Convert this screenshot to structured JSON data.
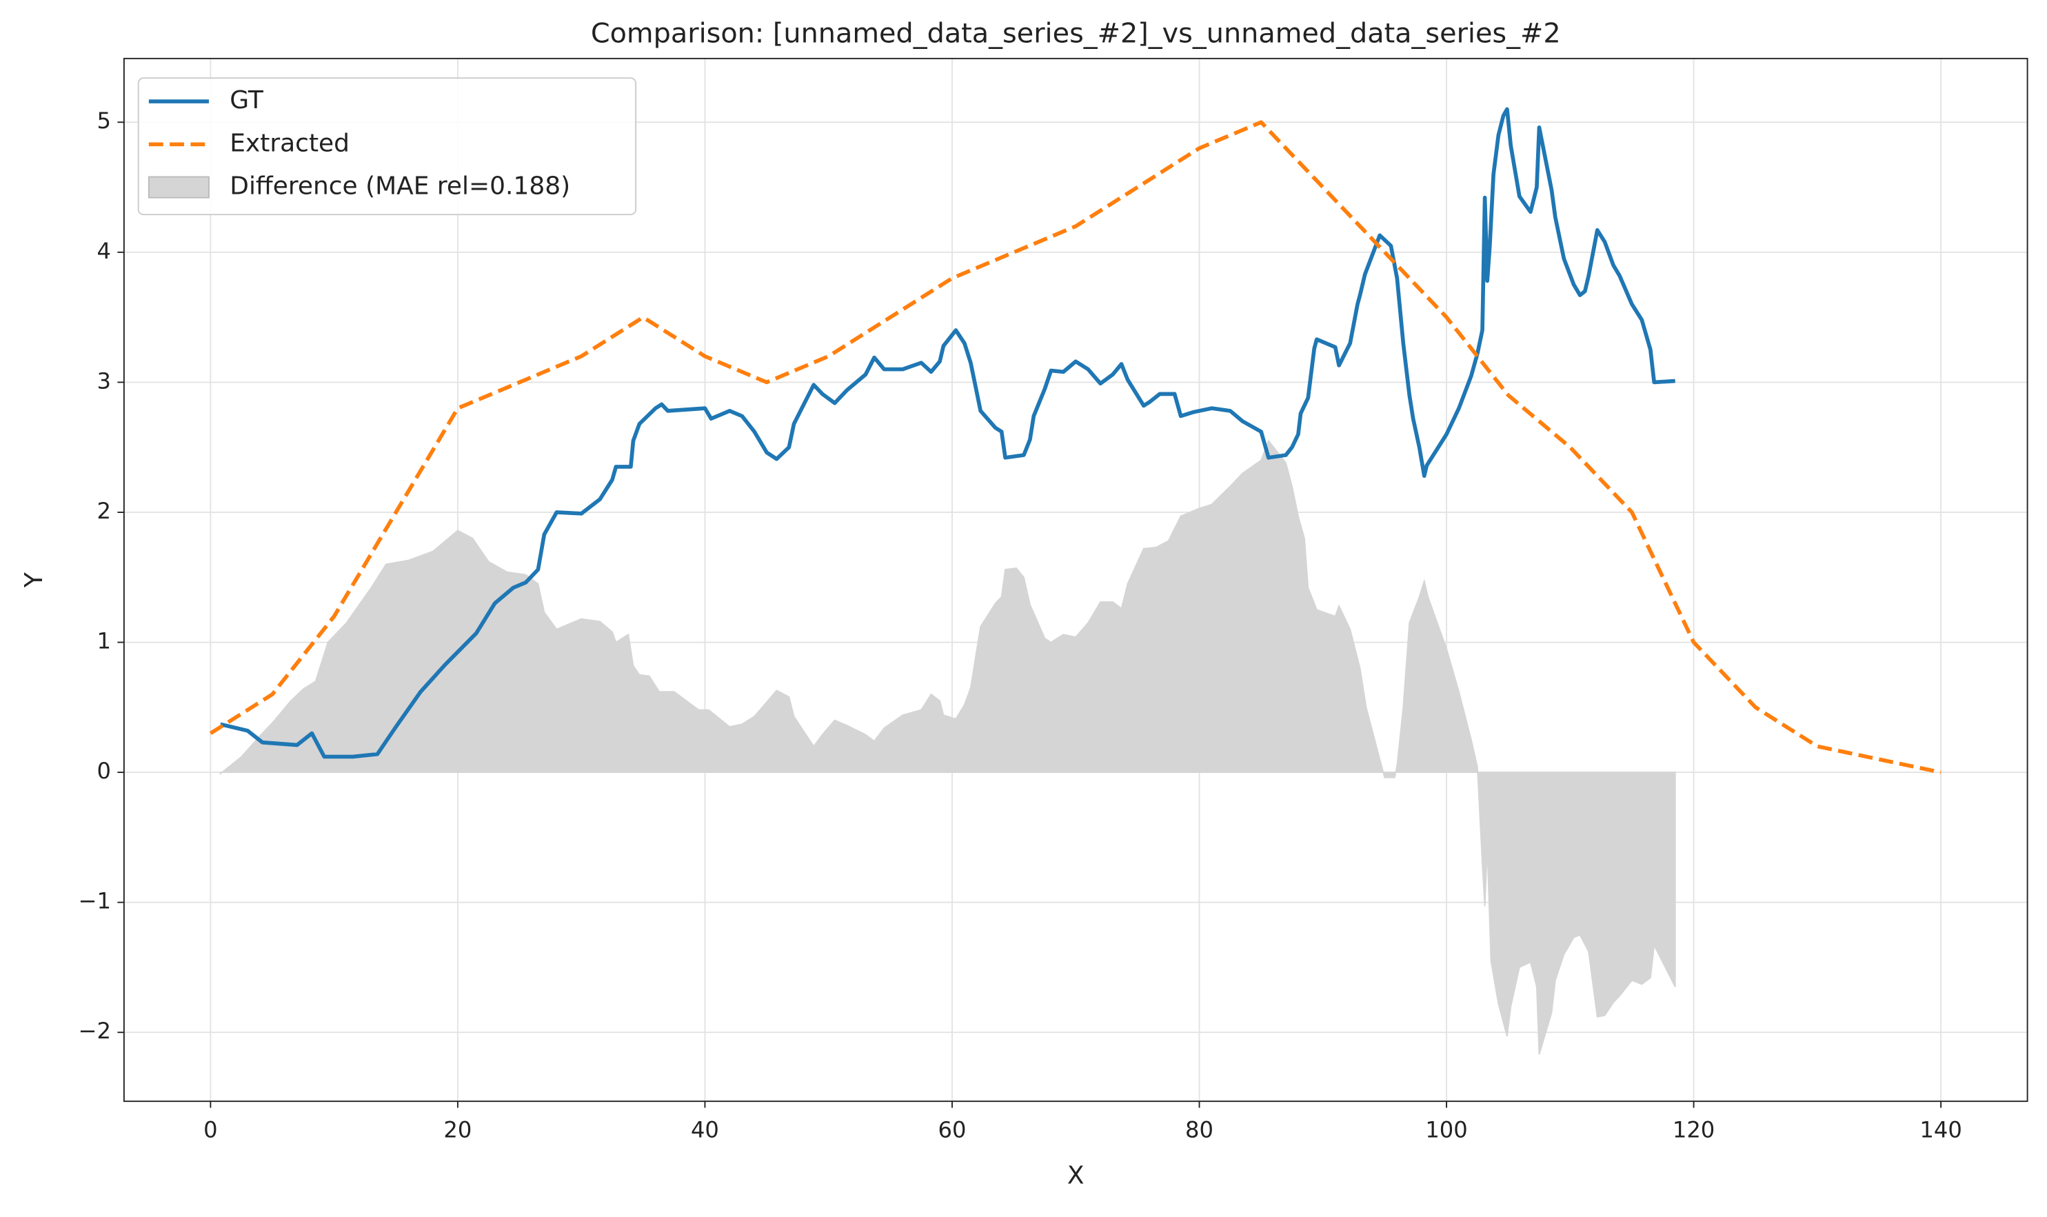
{
  "chart_data": {
    "type": "line",
    "title": "Comparison: [unnamed_data_series_#2]_vs_unnamed_data_series_#2",
    "x_label": "X",
    "y_label": "Y",
    "xlim": [
      -7,
      147
    ],
    "ylim": [
      -2.53,
      5.49
    ],
    "xticks": [
      0,
      20,
      40,
      60,
      80,
      100,
      120,
      140
    ],
    "yticks": [
      {
        "value": -2,
        "label": "−2"
      },
      {
        "value": -1,
        "label": "−1"
      },
      0,
      1,
      2,
      3,
      4,
      5
    ],
    "grid": true,
    "legend": "upper left",
    "series": [
      {
        "name": "GT",
        "color": "#1f77b4",
        "style": "solid",
        "x": [
          0.8,
          3,
          4.2,
          7,
          8.2,
          9.2,
          11.5,
          13.5,
          15,
          17,
          19,
          21.5,
          23,
          24.5,
          25.5,
          26.5,
          27,
          28,
          30,
          31.5,
          32.5,
          32.8,
          34,
          34.2,
          34.7,
          36,
          36.5,
          37,
          40,
          40.5,
          42,
          43,
          44,
          45,
          45.8,
          46.8,
          47.2,
          48.8,
          49.5,
          50.5,
          51.5,
          53,
          53.7,
          54.5,
          56,
          57.5,
          58.3,
          59,
          59.3,
          60.3,
          61,
          61.5,
          62.3,
          63.5,
          64,
          64.3,
          65.8,
          66.3,
          66.6,
          67.5,
          68,
          69,
          70,
          71,
          72,
          73,
          73.7,
          74.2,
          75.5,
          76,
          76.8,
          78,
          78.5,
          79.5,
          81,
          82.5,
          83.5,
          85,
          85.6,
          87,
          87.5,
          88,
          88.2,
          88.8,
          89.3,
          89.5,
          91,
          91.3,
          92.2,
          92.8,
          93,
          93.4,
          94,
          94.6,
          95.5,
          96,
          96.5,
          97,
          97.3,
          97.8,
          98.2,
          98.4,
          100,
          101,
          102,
          102.5,
          102.9,
          103.1,
          103.3,
          103.5,
          103.8,
          104.2,
          104.6,
          104.9,
          105.2,
          105.9,
          106.8,
          107.3,
          107.5,
          108.5,
          108.8,
          109.5,
          110.3,
          110.8,
          111.2,
          111.5,
          112.2,
          112.8,
          113.5,
          114,
          115,
          115.8,
          116.5,
          116.8,
          118.5
        ],
        "values": [
          0.37,
          0.32,
          0.23,
          0.21,
          0.3,
          0.12,
          0.12,
          0.14,
          0.35,
          0.62,
          0.83,
          1.07,
          1.3,
          1.42,
          1.46,
          1.56,
          1.83,
          2,
          1.99,
          2.1,
          2.25,
          2.35,
          2.35,
          2.55,
          2.68,
          2.8,
          2.83,
          2.78,
          2.8,
          2.72,
          2.78,
          2.74,
          2.62,
          2.46,
          2.41,
          2.5,
          2.68,
          2.98,
          2.91,
          2.84,
          2.94,
          3.06,
          3.19,
          3.1,
          3.1,
          3.15,
          3.08,
          3.16,
          3.28,
          3.4,
          3.3,
          3.15,
          2.78,
          2.65,
          2.62,
          2.42,
          2.44,
          2.56,
          2.74,
          2.95,
          3.09,
          3.08,
          3.16,
          3.1,
          2.99,
          3.06,
          3.14,
          3.02,
          2.82,
          2.85,
          2.91,
          2.91,
          2.74,
          2.77,
          2.8,
          2.78,
          2.7,
          2.62,
          2.42,
          2.44,
          2.5,
          2.6,
          2.76,
          2.88,
          3.26,
          3.33,
          3.27,
          3.13,
          3.3,
          3.6,
          3.67,
          3.83,
          3.98,
          4.13,
          4.05,
          3.8,
          3.3,
          2.9,
          2.72,
          2.5,
          2.28,
          2.36,
          2.6,
          2.8,
          3.05,
          3.22,
          3.4,
          4.42,
          3.78,
          4.05,
          4.6,
          4.9,
          5.05,
          5.1,
          4.82,
          4.43,
          4.31,
          4.5,
          4.96,
          4.48,
          4.27,
          3.95,
          3.75,
          3.67,
          3.7,
          3.82,
          4.17,
          4.08,
          3.9,
          3.82,
          3.6,
          3.48,
          3.25,
          3,
          3.01
        ]
      },
      {
        "name": "Extracted",
        "color": "#ff7f0e",
        "style": "dashed",
        "x": [
          0,
          5,
          10,
          15,
          20,
          25,
          30,
          35,
          40,
          45,
          50,
          55,
          60,
          65,
          70,
          75,
          80,
          85,
          90,
          95,
          100,
          105,
          110,
          115,
          120,
          125,
          130,
          140
        ],
        "values": [
          0.3,
          0.6,
          1.2,
          2,
          2.8,
          3,
          3.2,
          3.5,
          3.2,
          3,
          3.2,
          3.5,
          3.8,
          4,
          4.2,
          4.5,
          4.8,
          5,
          4.5,
          4,
          3.5,
          2.9,
          2.5,
          2,
          1,
          0.5,
          0.2,
          0
        ]
      },
      {
        "name": "Difference (MAE rel=0.188)",
        "color": "#d5d5d5",
        "style": "fill",
        "x": [
          0.8,
          2.5,
          4,
          5,
          6.5,
          7.5,
          8.5,
          9.5,
          11,
          13,
          14.2,
          16,
          18,
          20,
          21.2,
          22.5,
          24,
          25.5,
          26.5,
          27,
          28,
          30,
          31.5,
          32.5,
          32.8,
          33.8,
          34.2,
          34.7,
          35.5,
          36.3,
          37.5,
          39.5,
          40.3,
          42,
          43,
          44,
          45,
          45.8,
          46.8,
          47.2,
          48.8,
          49.5,
          50.5,
          51.5,
          53,
          53.7,
          54.5,
          56,
          57.5,
          58.3,
          59,
          59.3,
          60.3,
          61,
          61.5,
          62.3,
          63.5,
          64,
          64.3,
          65.2,
          65.8,
          66.3,
          67.5,
          68,
          69,
          70,
          71,
          72,
          73,
          73.7,
          74.2,
          75.5,
          76.5,
          77.5,
          78.5,
          80,
          81,
          82.5,
          83.5,
          85,
          85.6,
          87,
          87.5,
          88,
          88.5,
          88.8,
          89.5,
          91,
          91.3,
          92.2,
          93,
          93.5,
          94.6,
          95,
          95.8,
          96,
          96.5,
          97,
          97.8,
          98.2,
          98.5,
          100,
          101,
          102,
          102.5,
          102.9,
          103.1,
          103.3,
          103.6,
          104.2,
          104.9,
          105.2,
          105.9,
          106.8,
          107.3,
          107.5,
          108.5,
          108.8,
          109.5,
          110.3,
          110.8,
          111.5,
          112.2,
          112.8,
          113.5,
          114,
          115,
          115.8,
          116.5,
          116.8,
          118.5
        ],
        "values": [
          -0.01,
          0.12,
          0.28,
          0.38,
          0.55,
          0.64,
          0.7,
          1,
          1.15,
          1.42,
          1.6,
          1.63,
          1.7,
          1.86,
          1.8,
          1.62,
          1.54,
          1.52,
          1.45,
          1.23,
          1.1,
          1.18,
          1.16,
          1.08,
          1,
          1.06,
          0.82,
          0.75,
          0.74,
          0.62,
          0.62,
          0.48,
          0.48,
          0.35,
          0.37,
          0.43,
          0.54,
          0.63,
          0.58,
          0.43,
          0.2,
          0.29,
          0.4,
          0.36,
          0.29,
          0.24,
          0.34,
          0.44,
          0.48,
          0.6,
          0.55,
          0.44,
          0.41,
          0.52,
          0.65,
          1.12,
          1.3,
          1.35,
          1.56,
          1.57,
          1.5,
          1.29,
          1.03,
          1,
          1.06,
          1.04,
          1.15,
          1.31,
          1.31,
          1.26,
          1.45,
          1.72,
          1.73,
          1.78,
          1.97,
          2.03,
          2.06,
          2.2,
          2.3,
          2.4,
          2.55,
          2.38,
          2.2,
          1.97,
          1.8,
          1.42,
          1.25,
          1.2,
          1.28,
          1.1,
          0.8,
          0.5,
          0.1,
          -0.04,
          -0.04,
          0.05,
          0.5,
          1.15,
          1.35,
          1.47,
          1.35,
          0.95,
          0.62,
          0.25,
          0.04,
          -0.7,
          -1.03,
          -0.57,
          -1.45,
          -1.78,
          -2.03,
          -1.8,
          -1.5,
          -1.46,
          -1.65,
          -2.17,
          -1.85,
          -1.6,
          -1.4,
          -1.27,
          -1.25,
          -1.38,
          -1.88,
          -1.87,
          -1.77,
          -1.72,
          -1.6,
          -1.63,
          -1.58,
          -1.33,
          -1.65
        ]
      }
    ]
  }
}
